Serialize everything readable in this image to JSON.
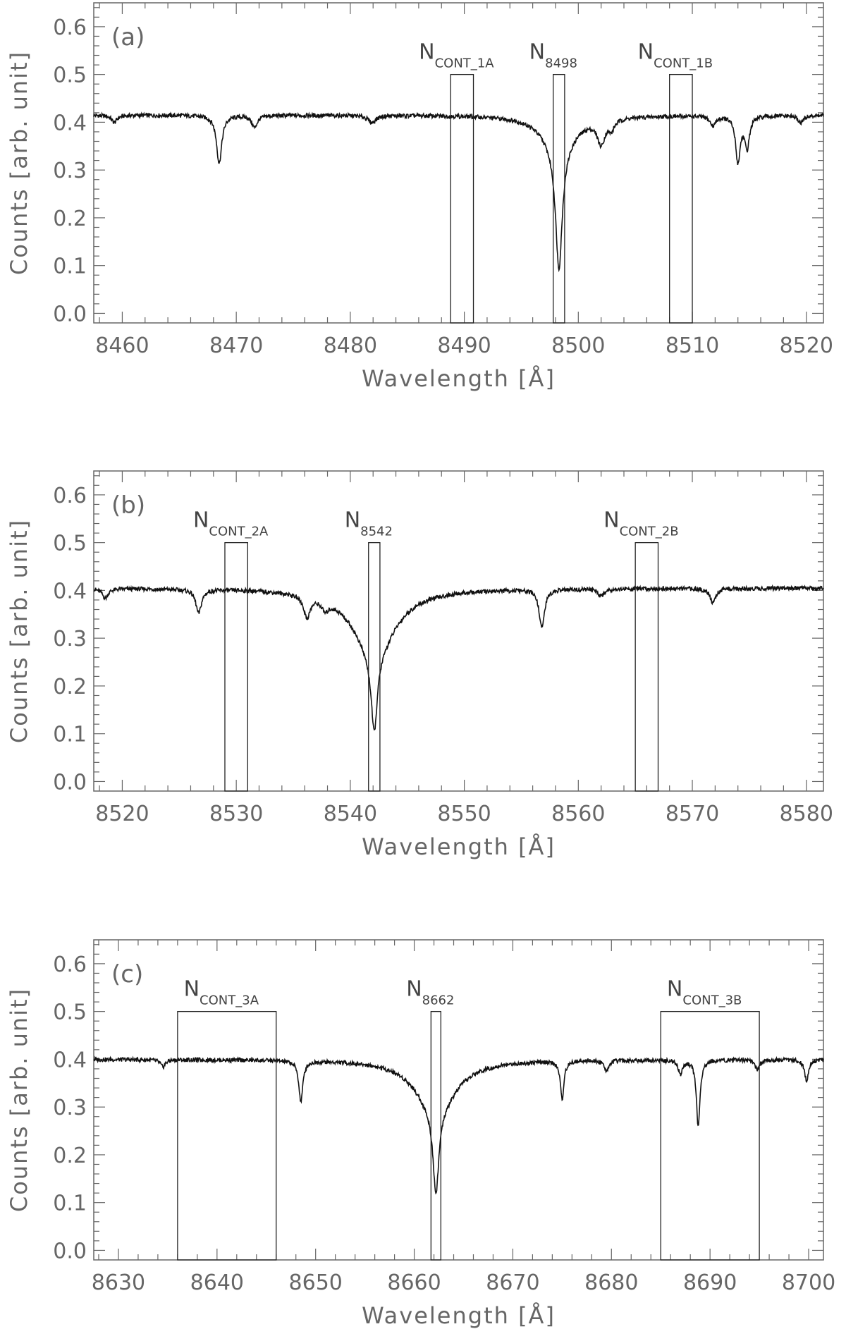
{
  "chart_data": [
    {
      "type": "line",
      "panel_label": "(a)",
      "xlabel": "Wavelength [Å]",
      "ylabel": "Counts [arb. unit]",
      "xlim": [
        8457.5,
        8521.5
      ],
      "ylim": [
        -0.02,
        0.65
      ],
      "x_ticks": [
        "8460",
        "8470",
        "8480",
        "8490",
        "8500",
        "8510",
        "8520"
      ],
      "y_ticks": [
        "0.0",
        "0.1",
        "0.2",
        "0.3",
        "0.4",
        "0.5",
        "0.6"
      ],
      "continuum": 0.415,
      "lines": [
        {
          "center": 8459.3,
          "depth": 0.015,
          "width": 0.3
        },
        {
          "center": 8468.5,
          "depth": 0.1,
          "width": 0.28
        },
        {
          "center": 8471.6,
          "depth": 0.025,
          "width": 0.3
        },
        {
          "center": 8481.9,
          "depth": 0.015,
          "width": 0.4
        },
        {
          "center": 8498.3,
          "depth": 0.25,
          "width": 0.35
        },
        {
          "center": 8498.3,
          "depth": 0.07,
          "width": 1.6
        },
        {
          "center": 8502.0,
          "depth": 0.05,
          "width": 0.4
        },
        {
          "center": 8502.9,
          "depth": 0.02,
          "width": 0.3
        },
        {
          "center": 8514.0,
          "depth": 0.095,
          "width": 0.25
        },
        {
          "center": 8514.8,
          "depth": 0.065,
          "width": 0.25
        },
        {
          "center": 8511.8,
          "depth": 0.02,
          "width": 0.3
        },
        {
          "center": 8519.5,
          "depth": 0.015,
          "width": 0.3
        }
      ],
      "windows": [
        {
          "label": "N",
          "sub": "CONT_1A",
          "x0": 8488.8,
          "x1": 8490.8,
          "top": 0.5
        },
        {
          "label": "N",
          "sub": "8498",
          "x0": 8497.8,
          "x1": 8498.8,
          "top": 0.5
        },
        {
          "label": "N",
          "sub": "CONT_1B",
          "x0": 8508.0,
          "x1": 8510.0,
          "top": 0.5
        }
      ]
    },
    {
      "type": "line",
      "panel_label": "(b)",
      "xlabel": "Wavelength [Å]",
      "ylabel": "Counts [arb. unit]",
      "xlim": [
        8517.5,
        8581.5
      ],
      "ylim": [
        -0.02,
        0.65
      ],
      "x_ticks": [
        "8520",
        "8530",
        "8540",
        "8550",
        "8560",
        "8570",
        "8580"
      ],
      "y_ticks": [
        "0.0",
        "0.1",
        "0.2",
        "0.3",
        "0.4",
        "0.5",
        "0.6"
      ],
      "continuum": 0.405,
      "lines": [
        {
          "center": 8518.5,
          "depth": 0.02,
          "width": 0.3
        },
        {
          "center": 8526.7,
          "depth": 0.05,
          "width": 0.3
        },
        {
          "center": 8536.2,
          "depth": 0.045,
          "width": 0.35
        },
        {
          "center": 8537.8,
          "depth": 0.02,
          "width": 0.35
        },
        {
          "center": 8542.1,
          "depth": 0.16,
          "width": 0.32
        },
        {
          "center": 8542.1,
          "depth": 0.14,
          "width": 2.2
        },
        {
          "center": 8556.8,
          "depth": 0.08,
          "width": 0.28
        },
        {
          "center": 8562.0,
          "depth": 0.015,
          "width": 0.3
        },
        {
          "center": 8571.8,
          "depth": 0.03,
          "width": 0.3
        }
      ],
      "windows": [
        {
          "label": "N",
          "sub": "CONT_2A",
          "x0": 8529.0,
          "x1": 8531.0,
          "top": 0.5
        },
        {
          "label": "N",
          "sub": "8542",
          "x0": 8541.6,
          "x1": 8542.6,
          "top": 0.5
        },
        {
          "label": "N",
          "sub": "CONT_2B",
          "x0": 8565.0,
          "x1": 8567.0,
          "top": 0.5
        }
      ]
    },
    {
      "type": "line",
      "panel_label": "(c)",
      "xlabel": "Wavelength [Å]",
      "ylabel": "Counts [arb. unit]",
      "xlim": [
        8627.5,
        8701.5
      ],
      "ylim": [
        -0.02,
        0.65
      ],
      "x_ticks": [
        "8630",
        "8640",
        "8650",
        "8660",
        "8670",
        "8680",
        "8690",
        "8700"
      ],
      "y_ticks": [
        "0.0",
        "0.1",
        "0.2",
        "0.3",
        "0.4",
        "0.5",
        "0.6"
      ],
      "continuum": 0.4,
      "lines": [
        {
          "center": 8634.5,
          "depth": 0.015,
          "width": 0.3
        },
        {
          "center": 8648.5,
          "depth": 0.085,
          "width": 0.25
        },
        {
          "center": 8662.2,
          "depth": 0.17,
          "width": 0.35
        },
        {
          "center": 8662.2,
          "depth": 0.11,
          "width": 2.4
        },
        {
          "center": 8675.0,
          "depth": 0.08,
          "width": 0.22
        },
        {
          "center": 8679.5,
          "depth": 0.02,
          "width": 0.3
        },
        {
          "center": 8687.0,
          "depth": 0.03,
          "width": 0.25
        },
        {
          "center": 8688.8,
          "depth": 0.14,
          "width": 0.22
        },
        {
          "center": 8694.8,
          "depth": 0.02,
          "width": 0.3
        },
        {
          "center": 8699.8,
          "depth": 0.045,
          "width": 0.25
        }
      ],
      "windows": [
        {
          "label": "N",
          "sub": "CONT_3A",
          "x0": 8636.0,
          "x1": 8646.0,
          "top": 0.5
        },
        {
          "label": "N",
          "sub": "8662",
          "x0": 8661.7,
          "x1": 8662.7,
          "top": 0.5
        },
        {
          "label": "N",
          "sub": "CONT_3B",
          "x0": 8685.0,
          "x1": 8695.0,
          "top": 0.5
        }
      ]
    }
  ]
}
